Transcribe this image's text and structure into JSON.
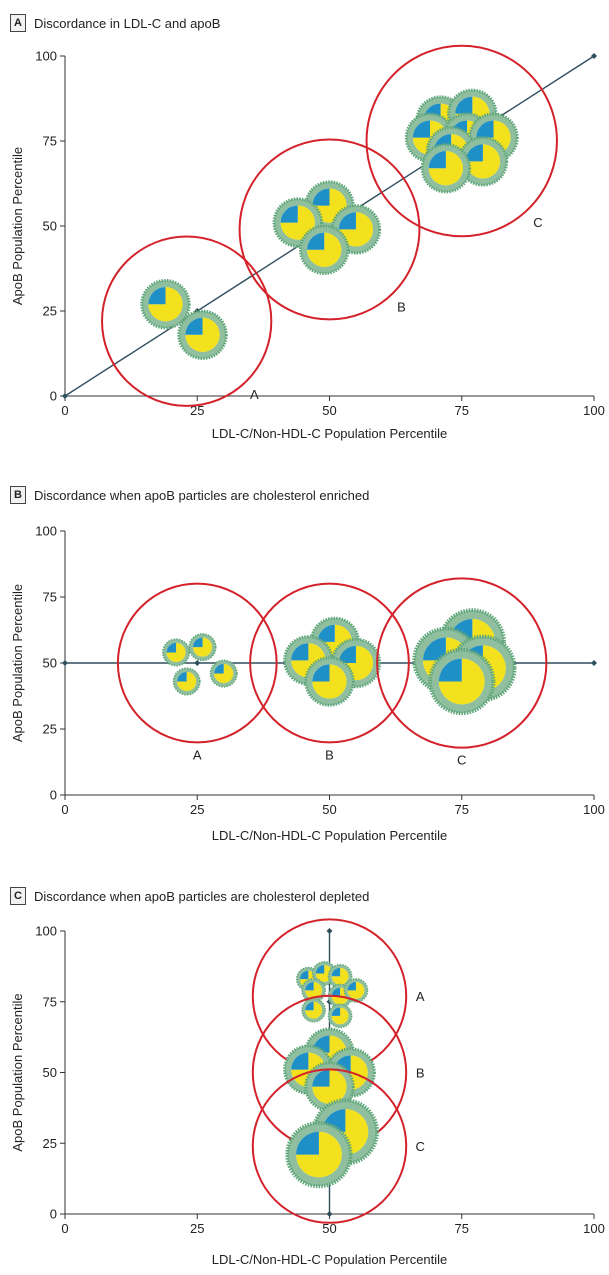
{
  "colors": {
    "axis": "#333333",
    "line": "#2f4f5f",
    "circle": "#d4222b",
    "particle_outer": "#8fbf9f",
    "particle_ring": "#5fa57a",
    "core_yellow": "#f2e11c",
    "core_blue": "#1f8fc8",
    "core_white": "#eef3f6"
  },
  "chart_data": [
    {
      "panel": "A",
      "type": "scatter",
      "title": "Discordance in LDL-C and apoB",
      "xlabel": "LDL-C/Non-HDL-C Population Percentile",
      "ylabel": "ApoB Population Percentile",
      "xlim": [
        0,
        100
      ],
      "ylim": [
        0,
        100
      ],
      "xticks": [
        0,
        25,
        50,
        75,
        100
      ],
      "yticks": [
        0,
        25,
        50,
        75,
        100
      ],
      "line_points": [
        [
          0,
          0
        ],
        [
          25,
          25
        ],
        [
          50,
          50
        ],
        [
          100,
          100
        ]
      ],
      "groups": [
        {
          "label": "A",
          "cx": 23,
          "cy": 22,
          "r": 16,
          "particles": [
            [
              19,
              27,
              4.5
            ],
            [
              26,
              18,
              4.5
            ]
          ]
        },
        {
          "label": "B",
          "cx": 50,
          "cy": 49,
          "r": 17,
          "particles": [
            [
              50,
              56,
              4.5
            ],
            [
              44,
              51,
              4.5
            ],
            [
              55,
              49,
              4.5
            ],
            [
              49,
              43,
              4.5
            ]
          ]
        },
        {
          "label": "C",
          "cx": 75,
          "cy": 75,
          "r": 18,
          "particles": [
            [
              71,
              81,
              4.5
            ],
            [
              77,
              83,
              4.5
            ],
            [
              69,
              76,
              4.5
            ],
            [
              76,
              76,
              4.5
            ],
            [
              81,
              76,
              4.5
            ],
            [
              73,
              72,
              4.5
            ],
            [
              79,
              69,
              4.5
            ],
            [
              72,
              67,
              4.5
            ]
          ]
        }
      ]
    },
    {
      "panel": "B",
      "type": "scatter",
      "title": "Discordance when apoB particles are cholesterol enriched",
      "xlabel": "LDL-C/Non-HDL-C Population Percentile",
      "ylabel": "ApoB Population Percentile",
      "xlim": [
        0,
        100
      ],
      "ylim": [
        0,
        100
      ],
      "xticks": [
        0,
        25,
        50,
        75,
        100
      ],
      "yticks": [
        0,
        25,
        50,
        75,
        100
      ],
      "line_points": [
        [
          0,
          50
        ],
        [
          25,
          50
        ],
        [
          50,
          50
        ],
        [
          100,
          50
        ]
      ],
      "groups": [
        {
          "label": "A",
          "cx": 25,
          "cy": 50,
          "r": 15,
          "particles": [
            [
              21,
              54,
              2.5
            ],
            [
              26,
              56,
              2.5
            ],
            [
              23,
              43,
              2.5
            ],
            [
              30,
              46,
              2.5
            ]
          ]
        },
        {
          "label": "B",
          "cx": 50,
          "cy": 50,
          "r": 15,
          "particles": [
            [
              51,
              58,
              4.5
            ],
            [
              46,
              51,
              4.5
            ],
            [
              55,
              50,
              4.5
            ],
            [
              50,
              43,
              4.5
            ]
          ]
        },
        {
          "label": "C",
          "cx": 75,
          "cy": 50,
          "r": 16,
          "particles": [
            [
              77,
              58,
              6
            ],
            [
              72,
              51,
              6
            ],
            [
              79,
              48,
              6
            ],
            [
              75,
              43,
              6
            ]
          ]
        }
      ]
    },
    {
      "panel": "C",
      "type": "scatter",
      "title": "Discordance when apoB particles are cholesterol depleted",
      "xlabel": "LDL-C/Non-HDL-C Population Percentile",
      "ylabel": "ApoB Population Percentile",
      "xlim": [
        0,
        100
      ],
      "ylim": [
        0,
        100
      ],
      "xticks": [
        0,
        25,
        50,
        75,
        100
      ],
      "yticks": [
        0,
        25,
        50,
        75,
        100
      ],
      "line_points": [
        [
          50,
          0
        ],
        [
          50,
          25
        ],
        [
          50,
          50
        ],
        [
          50,
          75
        ],
        [
          50,
          100
        ]
      ],
      "groups": [
        {
          "label": "A",
          "cx": 50,
          "cy": 77,
          "r": 14.5,
          "particles": [
            [
              46,
              83,
              2.2
            ],
            [
              49,
              85,
              2.2
            ],
            [
              52,
              84,
              2.2
            ],
            [
              47,
              79,
              2.2
            ],
            [
              52,
              77,
              2.2
            ],
            [
              55,
              79,
              2.2
            ],
            [
              47,
              72,
              2.2
            ],
            [
              52,
              70,
              2.2
            ]
          ]
        },
        {
          "label": "B",
          "cx": 50,
          "cy": 50,
          "r": 14.5,
          "particles": [
            [
              50,
              57,
              4.5
            ],
            [
              46,
              51,
              4.5
            ],
            [
              54,
              50,
              4.5
            ],
            [
              50,
              45,
              4.5
            ]
          ]
        },
        {
          "label": "C",
          "cx": 50,
          "cy": 24,
          "r": 14.5,
          "particles": [
            [
              53,
              29,
              6
            ],
            [
              48,
              21,
              6
            ]
          ]
        }
      ]
    }
  ]
}
